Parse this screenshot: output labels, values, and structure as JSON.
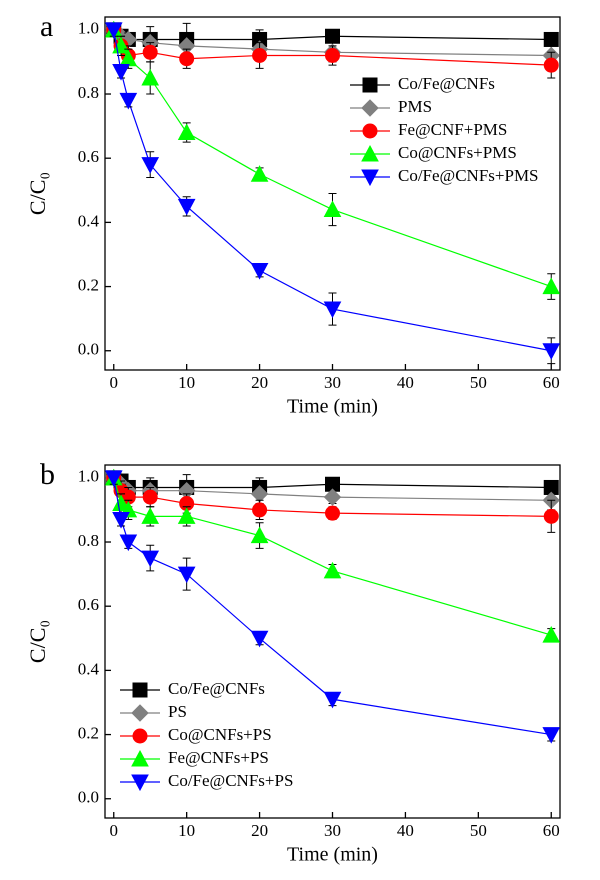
{
  "chart_data": [
    {
      "type": "line",
      "label": "a",
      "x_label": "Time (min)",
      "y_label": "C/C₀",
      "x": [
        0,
        1,
        2,
        5,
        10,
        20,
        30,
        60
      ],
      "xlim": [
        -1.2,
        61.2
      ],
      "xticks": [
        0,
        10,
        20,
        30,
        40,
        50,
        60
      ],
      "ylim": [
        -0.06,
        1.04
      ],
      "yticks": [
        {
          "value": 0,
          "label": "0.0"
        },
        0.2,
        0.4,
        0.6,
        0.8,
        {
          "value": 1,
          "label": "1.0"
        }
      ],
      "legend": "upper right",
      "series": [
        {
          "name": "Co/Fe@CNFs",
          "color": "#000000",
          "marker": "square",
          "values": [
            1.0,
            0.98,
            0.97,
            0.97,
            0.97,
            0.97,
            0.98,
            0.97
          ],
          "errors": [
            0.02,
            0.02,
            0.02,
            0.04,
            0.05,
            0.03,
            0.02,
            0.02
          ]
        },
        {
          "name": "PMS",
          "color": "#808080",
          "marker": "diamond",
          "values": [
            1.0,
            0.98,
            0.97,
            0.96,
            0.95,
            0.94,
            0.93,
            0.92
          ],
          "errors": [
            0.02,
            0.02,
            0.02,
            0.03,
            0.03,
            0.03,
            0.03,
            0.03
          ]
        },
        {
          "name": "Fe@CNF+PMS",
          "color": "#ff0000",
          "marker": "circle",
          "values": [
            1.0,
            0.95,
            0.92,
            0.93,
            0.91,
            0.92,
            0.92,
            0.89
          ],
          "errors": [
            0.02,
            0.03,
            0.03,
            0.03,
            0.03,
            0.04,
            0.03,
            0.04
          ]
        },
        {
          "name": "Co@CNFs+PMS",
          "color": "#00ff00",
          "marker": "triangle-up",
          "values": [
            1.0,
            0.95,
            0.91,
            0.85,
            0.68,
            0.55,
            0.44,
            0.2
          ],
          "errors": [
            0.02,
            0.03,
            0.03,
            0.05,
            0.03,
            0.02,
            0.05,
            0.04
          ]
        },
        {
          "name": "Co/Fe@CNFs+PMS",
          "color": "#0000ff",
          "marker": "triangle-down",
          "values": [
            1.0,
            0.87,
            0.78,
            0.58,
            0.45,
            0.25,
            0.13,
            0.0
          ],
          "errors": [
            0.02,
            0.02,
            0.02,
            0.04,
            0.03,
            0.02,
            0.05,
            0.04
          ]
        }
      ]
    },
    {
      "type": "line",
      "label": "b",
      "x_label": "Time (min)",
      "y_label": "C/C₀",
      "x": [
        0,
        1,
        2,
        5,
        10,
        20,
        30,
        60
      ],
      "xlim": [
        -1.2,
        61.2
      ],
      "xticks": [
        0,
        10,
        20,
        30,
        40,
        50,
        60
      ],
      "ylim": [
        -0.06,
        1.04
      ],
      "yticks": [
        {
          "value": 0,
          "label": "0.0"
        },
        0.2,
        0.4,
        0.6,
        0.8,
        {
          "value": 1,
          "label": "1.0"
        }
      ],
      "legend": "lower left",
      "series": [
        {
          "name": "Co/Fe@CNFs",
          "color": "#000000",
          "marker": "square",
          "values": [
            1.0,
            0.99,
            0.97,
            0.97,
            0.97,
            0.97,
            0.98,
            0.97
          ],
          "errors": [
            0.02,
            0.02,
            0.02,
            0.03,
            0.04,
            0.03,
            0.02,
            0.02
          ]
        },
        {
          "name": "PS",
          "color": "#808080",
          "marker": "diamond",
          "values": [
            1.0,
            0.98,
            0.96,
            0.96,
            0.96,
            0.95,
            0.94,
            0.93
          ],
          "errors": [
            0.02,
            0.02,
            0.02,
            0.03,
            0.03,
            0.03,
            0.02,
            0.03
          ]
        },
        {
          "name": "Co@CNFs+PS",
          "color": "#ff0000",
          "marker": "circle",
          "values": [
            1.0,
            0.96,
            0.94,
            0.94,
            0.92,
            0.9,
            0.89,
            0.88
          ],
          "errors": [
            0.02,
            0.03,
            0.03,
            0.03,
            0.03,
            0.03,
            0.02,
            0.05
          ]
        },
        {
          "name": "Fe@CNFs+PS",
          "color": "#00ff00",
          "marker": "triangle-up",
          "values": [
            1.0,
            0.92,
            0.9,
            0.88,
            0.88,
            0.82,
            0.71,
            0.51
          ],
          "errors": [
            0.02,
            0.03,
            0.03,
            0.03,
            0.03,
            0.04,
            0.02,
            0.02
          ]
        },
        {
          "name": "Co/Fe@CNFs+PS",
          "color": "#0000ff",
          "marker": "triangle-down",
          "values": [
            1.0,
            0.87,
            0.8,
            0.75,
            0.7,
            0.5,
            0.31,
            0.2
          ],
          "errors": [
            0.02,
            0.02,
            0.02,
            0.04,
            0.05,
            0.02,
            0.02,
            0.02
          ]
        }
      ]
    }
  ]
}
